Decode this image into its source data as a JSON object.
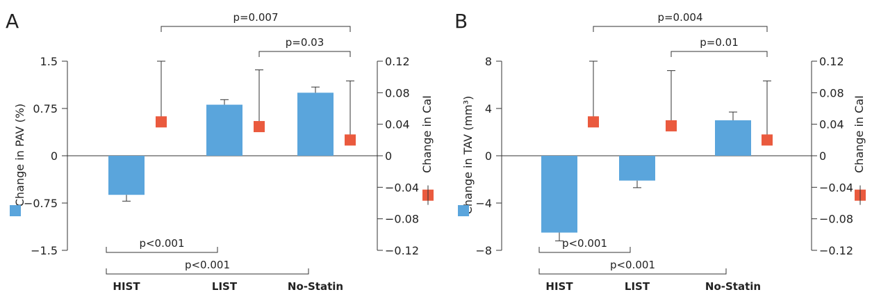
{
  "colors": {
    "bar": "#5aa5dc",
    "marker": "#ea5a3e",
    "axis": "#333333",
    "text": "#222222"
  },
  "chart_data": [
    {
      "type": "bar",
      "panel_label": "A",
      "categories": [
        "HIST",
        "LIST",
        "No-Statin"
      ],
      "series": [
        {
          "name": "Change in PAV (%)",
          "kind": "bar",
          "axis": "left",
          "values": [
            -0.62,
            0.81,
            1.0
          ],
          "error_ranges": [
            [
              -0.62,
              -0.72
            ],
            [
              0.81,
              0.89
            ],
            [
              1.0,
              1.09
            ]
          ]
        },
        {
          "name": "Change in CaI",
          "kind": "point",
          "axis": "right",
          "values": [
            0.043,
            0.037,
            0.02
          ],
          "error_ranges": [
            [
              0.043,
              0.12
            ],
            [
              0.037,
              0.109
            ],
            [
              0.02,
              0.095
            ]
          ]
        }
      ],
      "ylabel": "Change in PAV (%)",
      "y2label": "Change in CaI",
      "ylim": [
        -1.5,
        1.5
      ],
      "y2lim": [
        -0.12,
        0.12
      ],
      "yticks": [
        "1.5",
        "0.75",
        "0",
        "-0.75",
        "-1.5"
      ],
      "y2ticks": [
        "0.12",
        "0.08",
        "0.04",
        "0",
        "-0.04",
        "-0.08",
        "-0.12"
      ],
      "top_brackets": [
        {
          "text": "p=0.007",
          "from": 0,
          "to": 2
        },
        {
          "text": "p=0.03",
          "from": 1,
          "to": 2
        }
      ],
      "bottom_brackets": [
        {
          "text": "p<0.001",
          "from": 0,
          "to": 1
        },
        {
          "text": "p<0.001",
          "from": 0,
          "to": 2
        }
      ]
    },
    {
      "type": "bar",
      "panel_label": "B",
      "categories": [
        "HIST",
        "LIST",
        "No-Statin"
      ],
      "series": [
        {
          "name": "Change in TAV (mm³)",
          "kind": "bar",
          "axis": "left",
          "values": [
            -6.5,
            -2.1,
            3.0
          ],
          "error_ranges": [
            [
              -6.5,
              -7.2
            ],
            [
              -2.1,
              -2.7
            ],
            [
              3.0,
              3.7
            ]
          ]
        },
        {
          "name": "Change in CaI",
          "kind": "point",
          "axis": "right",
          "values": [
            0.043,
            0.038,
            0.02
          ],
          "error_ranges": [
            [
              0.043,
              0.12
            ],
            [
              0.038,
              0.108
            ],
            [
              0.02,
              0.095
            ]
          ]
        }
      ],
      "ylabel": "Change in TAV (mm³)",
      "y2label": "Change in CaI",
      "ylim": [
        -8,
        8
      ],
      "y2lim": [
        -0.12,
        0.12
      ],
      "yticks": [
        "8",
        "4",
        "0",
        "-4",
        "-8"
      ],
      "y2ticks": [
        "0.12",
        "0.08",
        "0.04",
        "0",
        "-0.04",
        "-0.08",
        "-0.12"
      ],
      "top_brackets": [
        {
          "text": "p=0.004",
          "from": 0,
          "to": 2
        },
        {
          "text": "p=0.01",
          "from": 1,
          "to": 2
        }
      ],
      "bottom_brackets": [
        {
          "text": "p<0.001",
          "from": 0,
          "to": 1
        },
        {
          "text": "p<0.001",
          "from": 0,
          "to": 2
        }
      ]
    }
  ]
}
